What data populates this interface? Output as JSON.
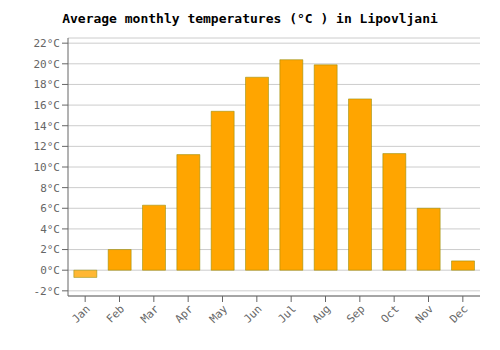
{
  "chart_data": {
    "type": "bar",
    "title": "Average monthly temperatures (°C ) in Lipovljani",
    "categories": [
      "Jan",
      "Feb",
      "Mar",
      "Apr",
      "May",
      "Jun",
      "Jul",
      "Aug",
      "Sep",
      "Oct",
      "Nov",
      "Dec"
    ],
    "values": [
      -0.7,
      2.0,
      6.3,
      11.2,
      15.4,
      18.7,
      20.4,
      19.9,
      16.6,
      11.3,
      6.0,
      0.9
    ],
    "colors": [
      "#FFB733",
      "#FFA500",
      "#FFA500",
      "#FFA500",
      "#FFA500",
      "#FFA500",
      "#FFA500",
      "#FFA500",
      "#FFA500",
      "#FFA500",
      "#FFA500",
      "#FFA500"
    ],
    "ylim": [
      -2.5,
      22.5
    ],
    "yticks": [
      {
        "value": -2,
        "label": "-2°C"
      },
      {
        "value": 0,
        "label": "0°C"
      },
      {
        "value": 2,
        "label": "2°C"
      },
      {
        "value": 4,
        "label": "4°C"
      },
      {
        "value": 6,
        "label": "6°C"
      },
      {
        "value": 8,
        "label": "8°C"
      },
      {
        "value": 10,
        "label": "10°C"
      },
      {
        "value": 12,
        "label": "12°C"
      },
      {
        "value": 14,
        "label": "14°C"
      },
      {
        "value": 16,
        "label": "16°C"
      },
      {
        "value": 18,
        "label": "18°C"
      },
      {
        "value": 20,
        "label": "20°C"
      },
      {
        "value": 22,
        "label": "22°C"
      }
    ],
    "grid": true
  }
}
